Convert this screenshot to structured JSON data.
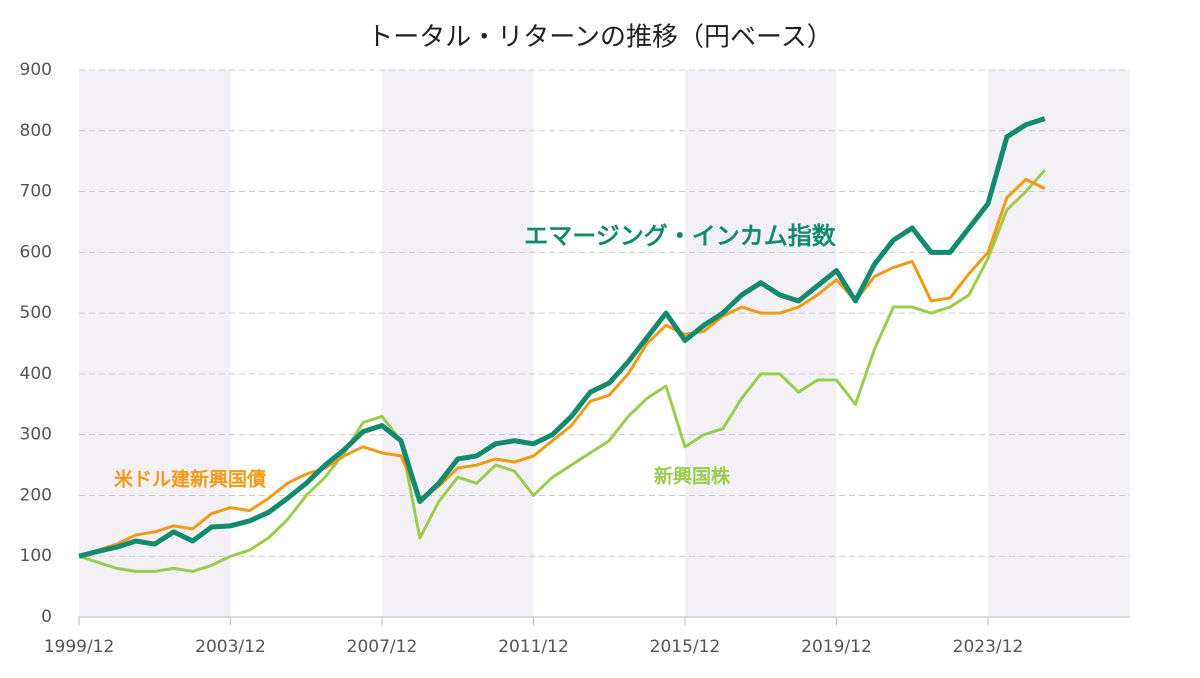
{
  "chart_data": {
    "type": "line",
    "title": "トータル・リターンの推移（円ベース）",
    "x": [
      "1999/12",
      "2000/06",
      "2000/12",
      "2001/06",
      "2001/12",
      "2002/06",
      "2002/12",
      "2003/06",
      "2003/12",
      "2004/06",
      "2004/12",
      "2005/06",
      "2005/12",
      "2006/06",
      "2006/12",
      "2007/06",
      "2007/12",
      "2008/06",
      "2008/12",
      "2009/06",
      "2009/12",
      "2010/06",
      "2010/12",
      "2011/06",
      "2011/12",
      "2012/06",
      "2012/12",
      "2013/06",
      "2013/12",
      "2014/06",
      "2014/12",
      "2015/06",
      "2015/12",
      "2016/06",
      "2016/12",
      "2017/06",
      "2017/12",
      "2018/06",
      "2018/12",
      "2019/06",
      "2019/12",
      "2020/06",
      "2020/12",
      "2021/06",
      "2021/12",
      "2022/06",
      "2022/12",
      "2023/06",
      "2023/12",
      "2024/06",
      "2024/12",
      "2025/06"
    ],
    "series": [
      {
        "name": "エマージング・インカム指数",
        "color": "#128a6e",
        "values": [
          100,
          108,
          115,
          125,
          120,
          140,
          125,
          148,
          150,
          158,
          172,
          195,
          220,
          250,
          275,
          305,
          315,
          290,
          190,
          220,
          260,
          265,
          285,
          290,
          285,
          300,
          330,
          370,
          385,
          420,
          460,
          500,
          455,
          480,
          500,
          530,
          550,
          530,
          520,
          545,
          570,
          520,
          580,
          620,
          640,
          600,
          600,
          640,
          680,
          790,
          810,
          820
        ]
      },
      {
        "name": "米ドル建新興国債",
        "color": "#f29a16",
        "values": [
          100,
          110,
          120,
          135,
          140,
          150,
          145,
          170,
          180,
          175,
          195,
          220,
          235,
          245,
          265,
          280,
          270,
          265,
          195,
          215,
          245,
          250,
          260,
          255,
          265,
          290,
          315,
          355,
          365,
          400,
          450,
          480,
          465,
          470,
          495,
          510,
          500,
          500,
          510,
          530,
          555,
          520,
          560,
          575,
          585,
          520,
          525,
          565,
          600,
          690,
          720,
          705
        ]
      },
      {
        "name": "新興国株",
        "color": "#9ccc4e",
        "values": [
          100,
          90,
          80,
          75,
          75,
          80,
          75,
          85,
          100,
          110,
          130,
          160,
          200,
          230,
          270,
          320,
          330,
          290,
          130,
          190,
          230,
          220,
          250,
          240,
          200,
          230,
          250,
          270,
          290,
          330,
          360,
          380,
          280,
          300,
          310,
          360,
          400,
          400,
          370,
          390,
          390,
          350,
          440,
          510,
          510,
          500,
          510,
          530,
          590,
          670,
          700,
          735
        ]
      }
    ],
    "xlim": [
      "1999/12",
      "2027/09"
    ],
    "xticks": [
      "1999/12",
      "2003/12",
      "2007/12",
      "2011/12",
      "2015/12",
      "2019/12",
      "2023/12"
    ],
    "ylim": [
      0,
      900
    ],
    "yticks": [
      0,
      100,
      200,
      300,
      400,
      500,
      600,
      700,
      800,
      900
    ],
    "grid": true
  }
}
